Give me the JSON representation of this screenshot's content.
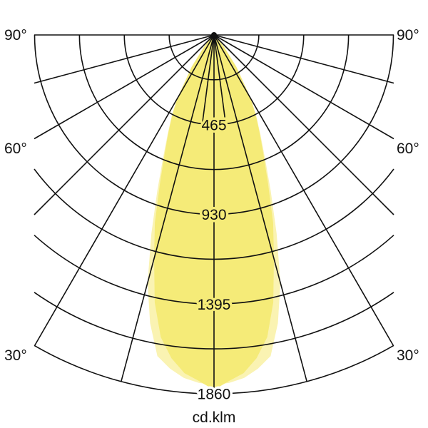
{
  "chart_data": {
    "type": "polar",
    "unit_label": "cd.klm",
    "radial_axis": {
      "range": [
        0,
        1860
      ],
      "gridline_step": 232.5,
      "tick_labels": [
        "465",
        "930",
        "1395",
        "1860"
      ],
      "tick_values": [
        465,
        930,
        1395,
        1860
      ]
    },
    "angle_axis": {
      "spoke_step_deg": 15,
      "visible_range_deg": [
        -90,
        90
      ],
      "tick_labels": [
        {
          "value": 90,
          "text": "90°"
        },
        {
          "value": 60,
          "text": "60°"
        },
        {
          "value": 30,
          "text": "30°"
        }
      ]
    },
    "gamma_deg": [
      0,
      2.5,
      5,
      7.5,
      10,
      12.5,
      15,
      17.5,
      20,
      22.5,
      25,
      27.5,
      30,
      35,
      40,
      45,
      50
    ],
    "series": [
      {
        "color": "#faf3b2",
        "symmetric": true,
        "values": [
          1815,
          1805,
          1785,
          1745,
          1690,
          1530,
          1330,
          1080,
          860,
          690,
          570,
          475,
          385,
          205,
          85,
          20,
          0
        ]
      },
      {
        "color": "#f5eb78",
        "symmetric": true,
        "values": [
          1840,
          1795,
          1760,
          1690,
          1590,
          1420,
          1200,
          1020,
          820,
          670,
          560,
          470,
          380,
          200,
          80,
          20,
          0
        ]
      }
    ],
    "grid": true,
    "grid_color": "#111111"
  }
}
